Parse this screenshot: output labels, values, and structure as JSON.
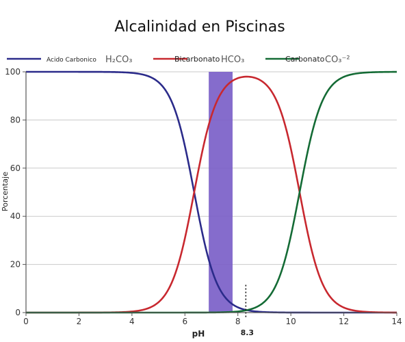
{
  "chart_data": {
    "type": "line",
    "title": "Alcalinidad en Piscinas",
    "xlabel": "pH",
    "ylabel": "Porcentaje",
    "xlim": [
      0,
      14
    ],
    "ylim": [
      0,
      100
    ],
    "x_ticks": [
      0,
      2,
      4,
      6,
      8,
      10,
      12,
      14
    ],
    "y_ticks": [
      0,
      20,
      40,
      60,
      80,
      100
    ],
    "grid": true,
    "legend_position": "top",
    "series": [
      {
        "name": "Acido Carbonico",
        "formula": "H₂CO₃",
        "color": "#2b2b8a",
        "pka_center": 6.35,
        "kind": "falling"
      },
      {
        "name": "Bicarbonato",
        "formula": "HCO₃",
        "color": "#c8282f",
        "pka_low": 6.35,
        "pka_high": 10.33,
        "kind": "peak"
      },
      {
        "name": "Carbonato",
        "formula": "CO₃⁻²",
        "color": "#146b35",
        "pka_center": 10.33,
        "kind": "rising"
      }
    ],
    "highlight_band": {
      "x_start": 6.9,
      "x_end": 7.8,
      "color": "#7b5fc8"
    },
    "annotations": [
      {
        "x": 8.3,
        "label": "8.3",
        "style": "dotted"
      }
    ]
  }
}
